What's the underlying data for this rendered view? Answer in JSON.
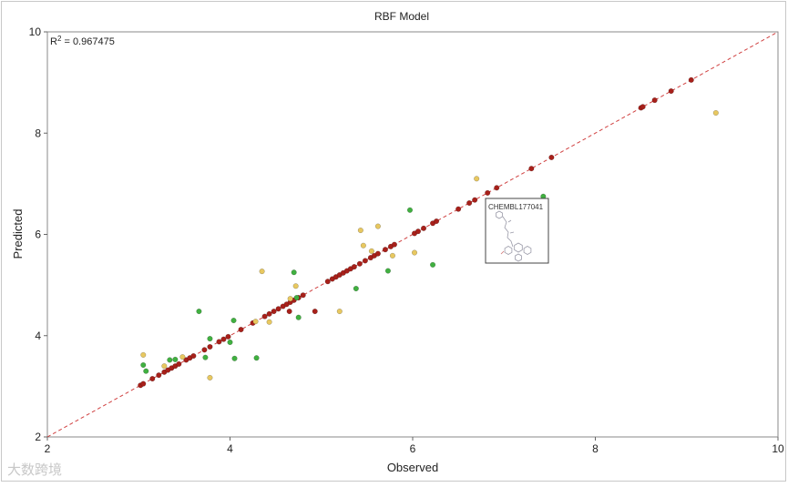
{
  "chart_data": {
    "type": "scatter",
    "title": "RBF Model",
    "xlabel": "Observed",
    "ylabel": "Predicted",
    "xlim": [
      2,
      10
    ],
    "ylim": [
      2,
      10
    ],
    "xticks": [
      "2",
      "4",
      "6",
      "8",
      "10"
    ],
    "yticks": [
      "2",
      "4",
      "6",
      "8",
      "10"
    ],
    "grid": false,
    "legend": "none",
    "r2_label": "R",
    "r2_sup": "2",
    "r2_value": " = 0.967475",
    "identity_line": {
      "from": [
        2,
        2
      ],
      "to": [
        10,
        10
      ],
      "color": "#d04040",
      "style": "dashed"
    },
    "tooltip": {
      "label": "CHEMBL177041",
      "anchor_observed": 6.82,
      "anchor_predicted": 6.55
    },
    "series": [
      {
        "color": "#a8201a",
        "points": [
          [
            3.02,
            3.02
          ],
          [
            3.05,
            3.05
          ],
          [
            3.15,
            3.15
          ],
          [
            3.22,
            3.22
          ],
          [
            3.28,
            3.28
          ],
          [
            3.32,
            3.32
          ],
          [
            3.36,
            3.36
          ],
          [
            3.4,
            3.4
          ],
          [
            3.44,
            3.44
          ],
          [
            3.52,
            3.52
          ],
          [
            3.56,
            3.56
          ],
          [
            3.6,
            3.6
          ],
          [
            3.72,
            3.72
          ],
          [
            3.78,
            3.78
          ],
          [
            3.88,
            3.88
          ],
          [
            3.93,
            3.93
          ],
          [
            3.98,
            3.98
          ],
          [
            4.12,
            4.12
          ],
          [
            4.25,
            4.25
          ],
          [
            4.38,
            4.38
          ],
          [
            4.43,
            4.43
          ],
          [
            4.48,
            4.48
          ],
          [
            4.53,
            4.53
          ],
          [
            4.58,
            4.58
          ],
          [
            4.62,
            4.62
          ],
          [
            4.66,
            4.66
          ],
          [
            4.7,
            4.7
          ],
          [
            4.75,
            4.75
          ],
          [
            4.8,
            4.8
          ],
          [
            4.65,
            4.48
          ],
          [
            4.93,
            4.48
          ],
          [
            5.07,
            5.07
          ],
          [
            5.12,
            5.12
          ],
          [
            5.16,
            5.16
          ],
          [
            5.2,
            5.2
          ],
          [
            5.24,
            5.24
          ],
          [
            5.28,
            5.28
          ],
          [
            5.32,
            5.32
          ],
          [
            5.36,
            5.36
          ],
          [
            5.42,
            5.42
          ],
          [
            5.48,
            5.48
          ],
          [
            5.54,
            5.54
          ],
          [
            5.58,
            5.58
          ],
          [
            5.62,
            5.62
          ],
          [
            5.7,
            5.7
          ],
          [
            5.76,
            5.76
          ],
          [
            5.8,
            5.8
          ],
          [
            6.02,
            6.02
          ],
          [
            6.06,
            6.06
          ],
          [
            6.12,
            6.12
          ],
          [
            6.22,
            6.22
          ],
          [
            6.26,
            6.26
          ],
          [
            6.5,
            6.5
          ],
          [
            6.62,
            6.62
          ],
          [
            6.68,
            6.68
          ],
          [
            6.82,
            6.82
          ],
          [
            6.92,
            6.92
          ],
          [
            7.3,
            7.3
          ],
          [
            7.52,
            7.52
          ],
          [
            8.5,
            8.5
          ],
          [
            8.52,
            8.52
          ],
          [
            8.65,
            8.65
          ],
          [
            8.83,
            8.83
          ],
          [
            9.05,
            9.05
          ]
        ]
      },
      {
        "color": "#e8c860",
        "points": [
          [
            3.05,
            3.62
          ],
          [
            3.28,
            3.4
          ],
          [
            3.48,
            3.58
          ],
          [
            3.78,
            3.17
          ],
          [
            4.28,
            4.28
          ],
          [
            4.35,
            5.27
          ],
          [
            4.43,
            4.27
          ],
          [
            4.66,
            4.73
          ],
          [
            4.72,
            4.98
          ],
          [
            5.2,
            4.48
          ],
          [
            5.43,
            6.08
          ],
          [
            5.46,
            5.78
          ],
          [
            5.55,
            5.67
          ],
          [
            5.62,
            6.16
          ],
          [
            5.78,
            5.58
          ],
          [
            6.02,
            5.64
          ],
          [
            6.7,
            7.1
          ],
          [
            9.32,
            8.4
          ]
        ]
      },
      {
        "color": "#40b040",
        "points": [
          [
            3.05,
            3.42
          ],
          [
            3.08,
            3.3
          ],
          [
            3.34,
            3.52
          ],
          [
            3.4,
            3.53
          ],
          [
            3.66,
            4.48
          ],
          [
            3.73,
            3.57
          ],
          [
            3.78,
            3.94
          ],
          [
            4.0,
            3.87
          ],
          [
            4.04,
            4.3
          ],
          [
            4.05,
            3.55
          ],
          [
            4.29,
            3.56
          ],
          [
            4.7,
            5.25
          ],
          [
            4.73,
            4.75
          ],
          [
            4.75,
            4.36
          ],
          [
            5.38,
            4.93
          ],
          [
            5.73,
            5.28
          ],
          [
            5.97,
            6.48
          ],
          [
            6.22,
            5.4
          ],
          [
            7.43,
            6.75
          ]
        ]
      }
    ]
  },
  "watermark": "大数跨境"
}
